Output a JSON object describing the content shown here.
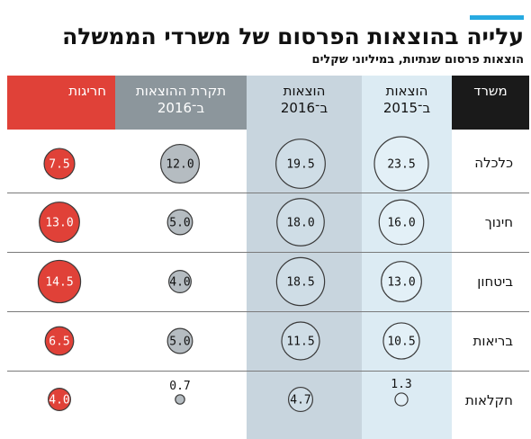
{
  "title": "עלייה בהוצאות הפרסום של משרדי הממשלה",
  "subtitle": "הוצאות פרסום שנתיות, במיליוני שקלים",
  "colors": {
    "header_dark": "#1a1a1a",
    "header_red": "#e04138",
    "header_gray": "#8c969c",
    "header_blue_dark": "#c8d5de",
    "header_blue_light": "#dcebf3",
    "bubble_red": "#e04138",
    "bubble_gray": "#b5bcc1",
    "bubble_blue": "#cfdde6",
    "bubble_light": "#e3f0f7",
    "accent": "#27aae1"
  },
  "chart_data": {
    "type": "table",
    "row_header": "משרד",
    "columns": [
      {
        "key": "spend_2015",
        "label_lines": [
          "הוצאות",
          "ב־2015"
        ]
      },
      {
        "key": "spend_2016",
        "label_lines": [
          "הוצאות",
          "ב־2016"
        ]
      },
      {
        "key": "budget_2016",
        "label_lines": [
          "תקרת ההוצאות",
          "ב־2016"
        ]
      },
      {
        "key": "overrun",
        "label_lines": [
          "חריגות"
        ]
      }
    ],
    "rows": [
      {
        "ministry": "כלכלה",
        "spend_2015": 23.5,
        "spend_2016": 19.5,
        "budget_2016": 12.0,
        "overrun": 7.5
      },
      {
        "ministry": "חינוך",
        "spend_2015": 16.0,
        "spend_2016": 18.0,
        "budget_2016": 5.0,
        "overrun": 13.0
      },
      {
        "ministry": "ביטחון",
        "spend_2015": 13.0,
        "spend_2016": 18.5,
        "budget_2016": 4.0,
        "overrun": 14.5
      },
      {
        "ministry": "בריאות",
        "spend_2015": 10.5,
        "spend_2016": 11.5,
        "budget_2016": 5.0,
        "overrun": 6.5
      },
      {
        "ministry": "חקלאות",
        "spend_2015": 1.3,
        "spend_2016": 4.7,
        "budget_2016": 0.7,
        "overrun": 4.0
      }
    ]
  }
}
